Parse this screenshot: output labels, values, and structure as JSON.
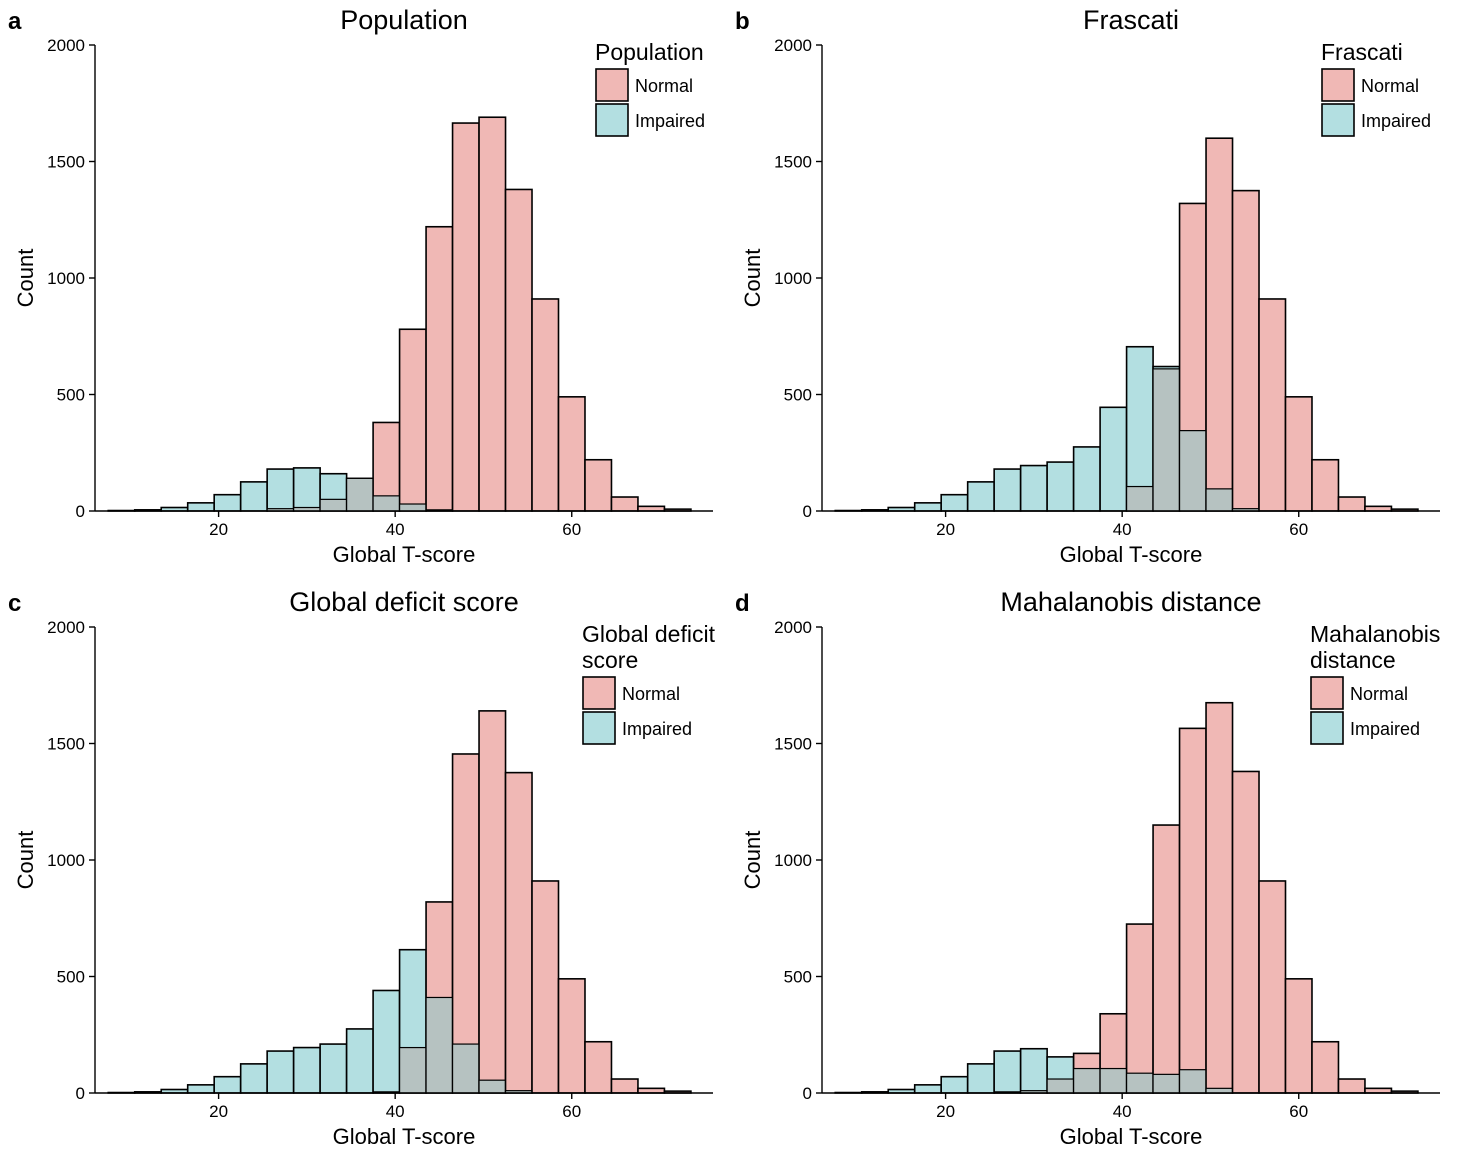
{
  "colors": {
    "normal_fill": "#f0b8b5",
    "impaired_fill": "#b3dfe1",
    "overlap_fill": "#b6c2c1",
    "outline": "#000000"
  },
  "chart_data": [
    {
      "type": "bar",
      "panel_letter": "a",
      "title": "Population",
      "xlabel": "Global T-score",
      "ylabel": "Count",
      "xlim": [
        6,
        76
      ],
      "ylim": [
        0,
        2000
      ],
      "xticks": [
        20,
        40,
        60
      ],
      "yticks": [
        0,
        500,
        1000,
        1500,
        2000
      ],
      "grid": false,
      "legend": {
        "title": [
          "Population"
        ],
        "position": "top-right",
        "entries": [
          "Normal",
          "Impaired"
        ]
      },
      "bin_width": 3,
      "bin_centers": [
        9,
        12,
        15,
        18,
        21,
        24,
        27,
        30,
        33,
        36,
        39,
        42,
        45,
        48,
        51,
        54,
        57,
        60,
        63,
        66,
        69,
        72
      ],
      "series": [
        {
          "name": "Normal",
          "values": [
            0,
            0,
            0,
            0,
            0,
            0,
            10,
            15,
            50,
            140,
            380,
            780,
            1220,
            1665,
            1690,
            1380,
            910,
            490,
            220,
            60,
            20,
            8
          ]
        },
        {
          "name": "Impaired",
          "values": [
            2,
            5,
            15,
            35,
            70,
            125,
            180,
            185,
            160,
            140,
            65,
            30,
            5,
            0,
            0,
            0,
            0,
            0,
            0,
            0,
            0,
            0
          ]
        }
      ]
    },
    {
      "type": "bar",
      "panel_letter": "b",
      "title": "Frascati",
      "xlabel": "Global T-score",
      "ylabel": "Count",
      "xlim": [
        6,
        76
      ],
      "ylim": [
        0,
        2000
      ],
      "xticks": [
        20,
        40,
        60
      ],
      "yticks": [
        0,
        500,
        1000,
        1500,
        2000
      ],
      "grid": false,
      "legend": {
        "title": [
          "Frascati"
        ],
        "position": "top-right",
        "entries": [
          "Normal",
          "Impaired"
        ]
      },
      "bin_width": 3,
      "bin_centers": [
        9,
        12,
        15,
        18,
        21,
        24,
        27,
        30,
        33,
        36,
        39,
        42,
        45,
        48,
        51,
        54,
        57,
        60,
        63,
        66,
        69,
        72
      ],
      "series": [
        {
          "name": "Normal",
          "values": [
            0,
            0,
            0,
            0,
            0,
            0,
            0,
            0,
            0,
            0,
            0,
            105,
            610,
            1320,
            1600,
            1375,
            910,
            490,
            220,
            60,
            20,
            8
          ]
        },
        {
          "name": "Impaired",
          "values": [
            2,
            5,
            15,
            35,
            70,
            125,
            180,
            195,
            210,
            275,
            445,
            705,
            620,
            345,
            95,
            10,
            0,
            0,
            0,
            0,
            0,
            0
          ]
        }
      ]
    },
    {
      "type": "bar",
      "panel_letter": "c",
      "title": "Global deficit score",
      "xlabel": "Global T-score",
      "ylabel": "Count",
      "xlim": [
        6,
        76
      ],
      "ylim": [
        0,
        2000
      ],
      "xticks": [
        20,
        40,
        60
      ],
      "yticks": [
        0,
        500,
        1000,
        1500,
        2000
      ],
      "grid": false,
      "legend": {
        "title": [
          "Global deficit",
          "score"
        ],
        "position": "top-right",
        "entries": [
          "Normal",
          "Impaired"
        ]
      },
      "bin_width": 3,
      "bin_centers": [
        9,
        12,
        15,
        18,
        21,
        24,
        27,
        30,
        33,
        36,
        39,
        42,
        45,
        48,
        51,
        54,
        57,
        60,
        63,
        66,
        69,
        72
      ],
      "series": [
        {
          "name": "Normal",
          "values": [
            0,
            0,
            0,
            0,
            0,
            0,
            0,
            0,
            0,
            0,
            5,
            195,
            820,
            1455,
            1640,
            1375,
            910,
            490,
            220,
            60,
            20,
            8
          ]
        },
        {
          "name": "Impaired",
          "values": [
            2,
            5,
            15,
            35,
            70,
            125,
            180,
            195,
            210,
            275,
            440,
            615,
            410,
            210,
            55,
            10,
            0,
            0,
            0,
            0,
            0,
            0
          ]
        }
      ]
    },
    {
      "type": "bar",
      "panel_letter": "d",
      "title": "Mahalanobis distance",
      "xlabel": "Global T-score",
      "ylabel": "Count",
      "xlim": [
        6,
        76
      ],
      "ylim": [
        0,
        2000
      ],
      "xticks": [
        20,
        40,
        60
      ],
      "yticks": [
        0,
        500,
        1000,
        1500,
        2000
      ],
      "grid": false,
      "legend": {
        "title": [
          "Mahalanobis",
          "distance"
        ],
        "position": "top-right",
        "entries": [
          "Normal",
          "Impaired"
        ]
      },
      "bin_width": 3,
      "bin_centers": [
        9,
        12,
        15,
        18,
        21,
        24,
        27,
        30,
        33,
        36,
        39,
        42,
        45,
        48,
        51,
        54,
        57,
        60,
        63,
        66,
        69,
        72
      ],
      "series": [
        {
          "name": "Normal",
          "values": [
            0,
            0,
            0,
            0,
            0,
            0,
            5,
            10,
            60,
            170,
            340,
            725,
            1150,
            1565,
            1675,
            1380,
            910,
            490,
            220,
            60,
            20,
            8
          ]
        },
        {
          "name": "Impaired",
          "values": [
            2,
            5,
            15,
            35,
            70,
            125,
            180,
            190,
            155,
            105,
            105,
            85,
            80,
            100,
            20,
            0,
            0,
            0,
            0,
            0,
            0,
            0
          ]
        }
      ]
    }
  ]
}
